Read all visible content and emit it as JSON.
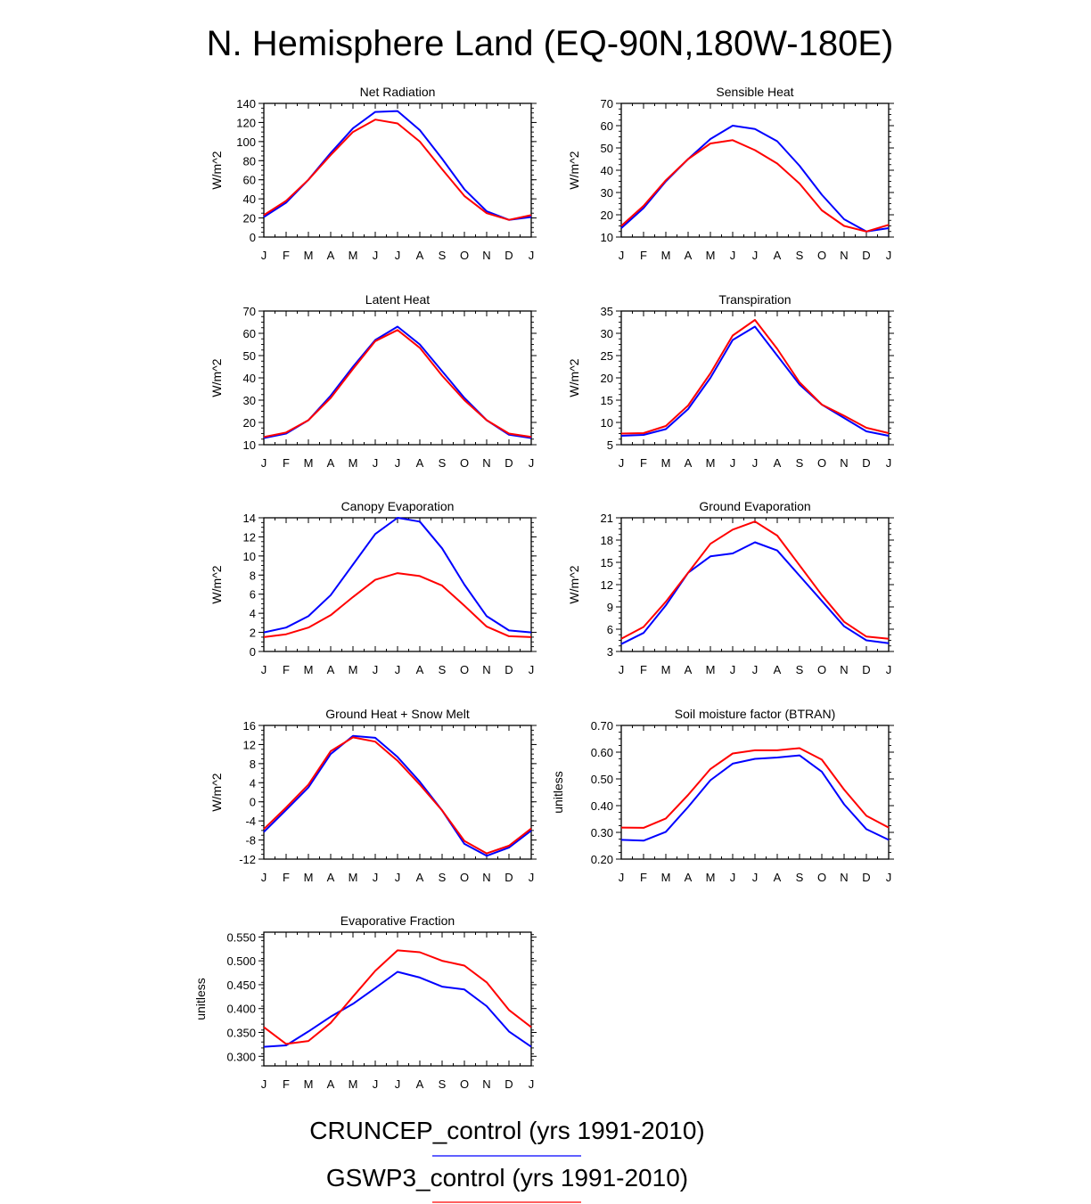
{
  "figure": {
    "title": "N. Hemisphere Land (EQ-90N,180W-180E)",
    "legend": [
      {
        "label": "CRUNCEP_control (yrs 1991-2010)",
        "color": "#0000ff"
      },
      {
        "label": "GSWP3_control (yrs 1991-2010)",
        "color": "#ff0000"
      }
    ]
  },
  "colors": {
    "CRUNCEP_control": "#0000ff",
    "GSWP3_control": "#ff0000",
    "axis": "#000000"
  },
  "chart_data": [
    {
      "type": "line",
      "title": "Net Radiation",
      "ylabel": "W/m^2",
      "x": [
        "J",
        "F",
        "M",
        "A",
        "M",
        "J",
        "J",
        "A",
        "S",
        "O",
        "N",
        "D",
        "J"
      ],
      "ylim": [
        0,
        140
      ],
      "yticks": [
        0,
        20,
        40,
        60,
        80,
        100,
        120,
        140
      ],
      "yticklabels": [
        "0",
        "20",
        "40",
        "60",
        "80",
        "100",
        "120",
        "140"
      ],
      "series": [
        {
          "name": "CRUNCEP_control",
          "color": "#0000ff",
          "values": [
            21,
            36,
            60,
            88,
            114,
            131,
            132,
            112,
            82,
            50,
            27,
            18,
            21
          ]
        },
        {
          "name": "GSWP3_control",
          "color": "#ff0000",
          "values": [
            23,
            38,
            60,
            86,
            110,
            123,
            119,
            100,
            71,
            43,
            25,
            18,
            23
          ]
        }
      ]
    },
    {
      "type": "line",
      "title": "Sensible Heat",
      "ylabel": "W/m^2",
      "x": [
        "J",
        "F",
        "M",
        "A",
        "M",
        "J",
        "J",
        "A",
        "S",
        "O",
        "N",
        "D",
        "J"
      ],
      "ylim": [
        10,
        70
      ],
      "yticks": [
        10,
        20,
        30,
        40,
        50,
        60,
        70
      ],
      "yticklabels": [
        "10",
        "20",
        "30",
        "40",
        "50",
        "60",
        "70"
      ],
      "series": [
        {
          "name": "CRUNCEP_control",
          "color": "#0000ff",
          "values": [
            14,
            23,
            35,
            45,
            54,
            60,
            58.5,
            53,
            42,
            29,
            18,
            12.5,
            14
          ]
        },
        {
          "name": "GSWP3_control",
          "color": "#ff0000",
          "values": [
            15,
            24,
            35.5,
            45,
            52,
            53.5,
            49,
            43,
            34,
            22,
            15,
            12.5,
            15.5
          ]
        }
      ]
    },
    {
      "type": "line",
      "title": "Latent Heat",
      "ylabel": "W/m^2",
      "x": [
        "J",
        "F",
        "M",
        "A",
        "M",
        "J",
        "J",
        "A",
        "S",
        "O",
        "N",
        "D",
        "J"
      ],
      "ylim": [
        10,
        70
      ],
      "yticks": [
        10,
        20,
        30,
        40,
        50,
        60,
        70
      ],
      "yticklabels": [
        "10",
        "20",
        "30",
        "40",
        "50",
        "60",
        "70"
      ],
      "series": [
        {
          "name": "CRUNCEP_control",
          "color": "#0000ff",
          "values": [
            13,
            15,
            21,
            32,
            45,
            57,
            63,
            55,
            43,
            31,
            21,
            14.5,
            13
          ]
        },
        {
          "name": "GSWP3_control",
          "color": "#ff0000",
          "values": [
            13.5,
            15.5,
            21,
            31,
            44,
            56.5,
            61.5,
            53.5,
            41,
            30,
            21,
            15,
            13.5
          ]
        }
      ]
    },
    {
      "type": "line",
      "title": "Transpiration",
      "ylabel": "W/m^2",
      "x": [
        "J",
        "F",
        "M",
        "A",
        "M",
        "J",
        "J",
        "A",
        "S",
        "O",
        "N",
        "D",
        "J"
      ],
      "ylim": [
        5,
        35
      ],
      "yticks": [
        5,
        10,
        15,
        20,
        25,
        30,
        35
      ],
      "yticklabels": [
        "5",
        "10",
        "15",
        "20",
        "25",
        "30",
        "35"
      ],
      "series": [
        {
          "name": "CRUNCEP_control",
          "color": "#0000ff",
          "values": [
            7,
            7.2,
            8.5,
            13,
            20,
            28.5,
            31.5,
            25,
            18.5,
            14,
            11,
            8,
            7
          ]
        },
        {
          "name": "GSWP3_control",
          "color": "#ff0000",
          "values": [
            7.5,
            7.6,
            9.2,
            13.8,
            21,
            29.5,
            33,
            26.5,
            19,
            14,
            11.5,
            8.8,
            7.6
          ]
        }
      ]
    },
    {
      "type": "line",
      "title": "Canopy Evaporation",
      "ylabel": "W/m^2",
      "x": [
        "J",
        "F",
        "M",
        "A",
        "M",
        "J",
        "J",
        "A",
        "S",
        "O",
        "N",
        "D",
        "J"
      ],
      "ylim": [
        0,
        14
      ],
      "yticks": [
        0,
        2,
        4,
        6,
        8,
        10,
        12,
        14
      ],
      "yticklabels": [
        "0",
        "2",
        "4",
        "6",
        "8",
        "10",
        "12",
        "14"
      ],
      "series": [
        {
          "name": "CRUNCEP_control",
          "color": "#0000ff",
          "values": [
            2,
            2.5,
            3.7,
            5.9,
            9.1,
            12.3,
            14,
            13.6,
            10.8,
            7,
            3.7,
            2.2,
            2
          ]
        },
        {
          "name": "GSWP3_control",
          "color": "#ff0000",
          "values": [
            1.5,
            1.8,
            2.5,
            3.8,
            5.7,
            7.5,
            8.2,
            7.9,
            6.9,
            4.8,
            2.6,
            1.6,
            1.5
          ]
        }
      ]
    },
    {
      "type": "line",
      "title": "Ground Evaporation",
      "ylabel": "W/m^2",
      "x": [
        "J",
        "F",
        "M",
        "A",
        "M",
        "J",
        "J",
        "A",
        "S",
        "O",
        "N",
        "D",
        "J"
      ],
      "ylim": [
        3,
        21
      ],
      "yticks": [
        3,
        6,
        9,
        12,
        15,
        18,
        21
      ],
      "yticklabels": [
        "3",
        "6",
        "9",
        "12",
        "15",
        "18",
        "21"
      ],
      "series": [
        {
          "name": "CRUNCEP_control",
          "color": "#0000ff",
          "values": [
            4,
            5.5,
            9.2,
            13.6,
            15.8,
            16.2,
            17.7,
            16.6,
            13.2,
            9.8,
            6.4,
            4.5,
            4.1
          ]
        },
        {
          "name": "GSWP3_control",
          "color": "#ff0000",
          "values": [
            4.7,
            6.3,
            9.7,
            13.6,
            17.5,
            19.4,
            20.5,
            18.6,
            14.6,
            10.6,
            7,
            5,
            4.7
          ]
        }
      ]
    },
    {
      "type": "line",
      "title": "Ground Heat + Snow Melt",
      "ylabel": "W/m^2",
      "x": [
        "J",
        "F",
        "M",
        "A",
        "M",
        "J",
        "J",
        "A",
        "S",
        "O",
        "N",
        "D",
        "J"
      ],
      "ylim": [
        -12,
        16
      ],
      "yticks": [
        -12,
        -8,
        -4,
        0,
        4,
        8,
        12,
        16
      ],
      "yticklabels": [
        "-12",
        "-8",
        "-4",
        "0",
        "4",
        "8",
        "12",
        "16"
      ],
      "series": [
        {
          "name": "CRUNCEP_control",
          "color": "#0000ff",
          "values": [
            -6.3,
            -1.7,
            3,
            10,
            13.8,
            13.4,
            9.4,
            4.2,
            -1.8,
            -8.8,
            -11.3,
            -9.6,
            -6
          ]
        },
        {
          "name": "GSWP3_control",
          "color": "#ff0000",
          "values": [
            -5.7,
            -1.2,
            3.6,
            10.6,
            13.5,
            12.6,
            8.6,
            3.6,
            -1.8,
            -8.2,
            -10.8,
            -9.2,
            -5.6
          ]
        }
      ]
    },
    {
      "type": "line",
      "title": "Soil moisture factor (BTRAN)",
      "ylabel": "unitless",
      "x": [
        "J",
        "F",
        "M",
        "A",
        "M",
        "J",
        "J",
        "A",
        "S",
        "O",
        "N",
        "D",
        "J"
      ],
      "ylim": [
        0.2,
        0.7
      ],
      "yticks": [
        0.2,
        0.3,
        0.4,
        0.5,
        0.6,
        0.7
      ],
      "yticklabels": [
        "0.20",
        "0.30",
        "0.40",
        "0.50",
        "0.60",
        "0.70"
      ],
      "series": [
        {
          "name": "CRUNCEP_control",
          "color": "#0000ff",
          "values": [
            0.272,
            0.269,
            0.302,
            0.395,
            0.495,
            0.557,
            0.575,
            0.58,
            0.588,
            0.527,
            0.405,
            0.312,
            0.272
          ]
        },
        {
          "name": "GSWP3_control",
          "color": "#ff0000",
          "values": [
            0.318,
            0.317,
            0.352,
            0.44,
            0.537,
            0.595,
            0.607,
            0.607,
            0.615,
            0.572,
            0.46,
            0.362,
            0.318
          ]
        }
      ]
    },
    {
      "type": "line",
      "title": "Evaporative Fraction",
      "ylabel": "unitless",
      "x": [
        "J",
        "F",
        "M",
        "A",
        "M",
        "J",
        "J",
        "A",
        "S",
        "O",
        "N",
        "D",
        "J"
      ],
      "ylim": [
        0.28,
        0.56
      ],
      "yticks": [
        0.3,
        0.35,
        0.4,
        0.45,
        0.5,
        0.55
      ],
      "yticklabels": [
        "0.300",
        "0.350",
        "0.400",
        "0.450",
        "0.500",
        "0.550"
      ],
      "series": [
        {
          "name": "CRUNCEP_control",
          "color": "#0000ff",
          "values": [
            0.32,
            0.323,
            0.352,
            0.383,
            0.41,
            0.443,
            0.477,
            0.465,
            0.446,
            0.44,
            0.405,
            0.352,
            0.32
          ]
        },
        {
          "name": "GSWP3_control",
          "color": "#ff0000",
          "values": [
            0.361,
            0.326,
            0.332,
            0.37,
            0.425,
            0.479,
            0.522,
            0.518,
            0.5,
            0.49,
            0.455,
            0.397,
            0.361
          ]
        }
      ]
    }
  ]
}
